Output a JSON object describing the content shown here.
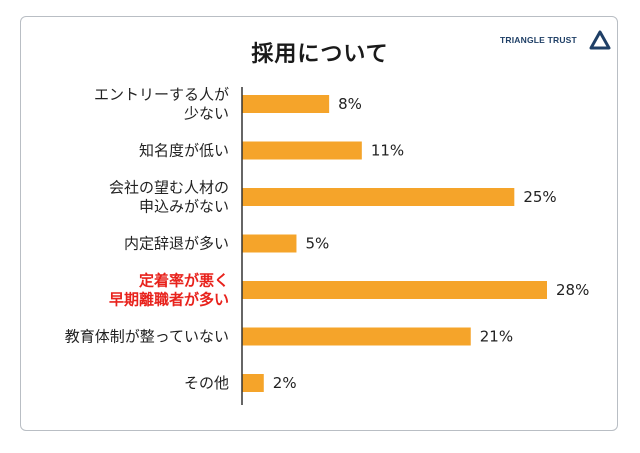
{
  "title": "採用について",
  "logo": {
    "text": "TRIANGLE TRUST",
    "mark": "triangle-icon",
    "color": "#1f3f66"
  },
  "colors": {
    "bar": "#f5a42a",
    "highlight": "#e8221c",
    "axis": "#333333"
  },
  "chart_data": {
    "type": "bar",
    "orientation": "horizontal",
    "title": "採用について",
    "categories": [
      [
        "エントリーする人が",
        "少ない"
      ],
      [
        "知名度が低い"
      ],
      [
        "会社の望む人材の",
        "申込みがない"
      ],
      [
        "内定辞退が多い"
      ],
      [
        "定着率が悪く",
        "早期離職者が多い"
      ],
      [
        "教育体制が整っていない"
      ],
      [
        "その他"
      ]
    ],
    "values": [
      8,
      11,
      25,
      5,
      28,
      21,
      2
    ],
    "value_labels": [
      "8%",
      "11%",
      "25%",
      "5%",
      "28%",
      "21%",
      "2%"
    ],
    "highlight_index": 4,
    "xlim": [
      0,
      28
    ],
    "grid": false,
    "legend": "none"
  }
}
